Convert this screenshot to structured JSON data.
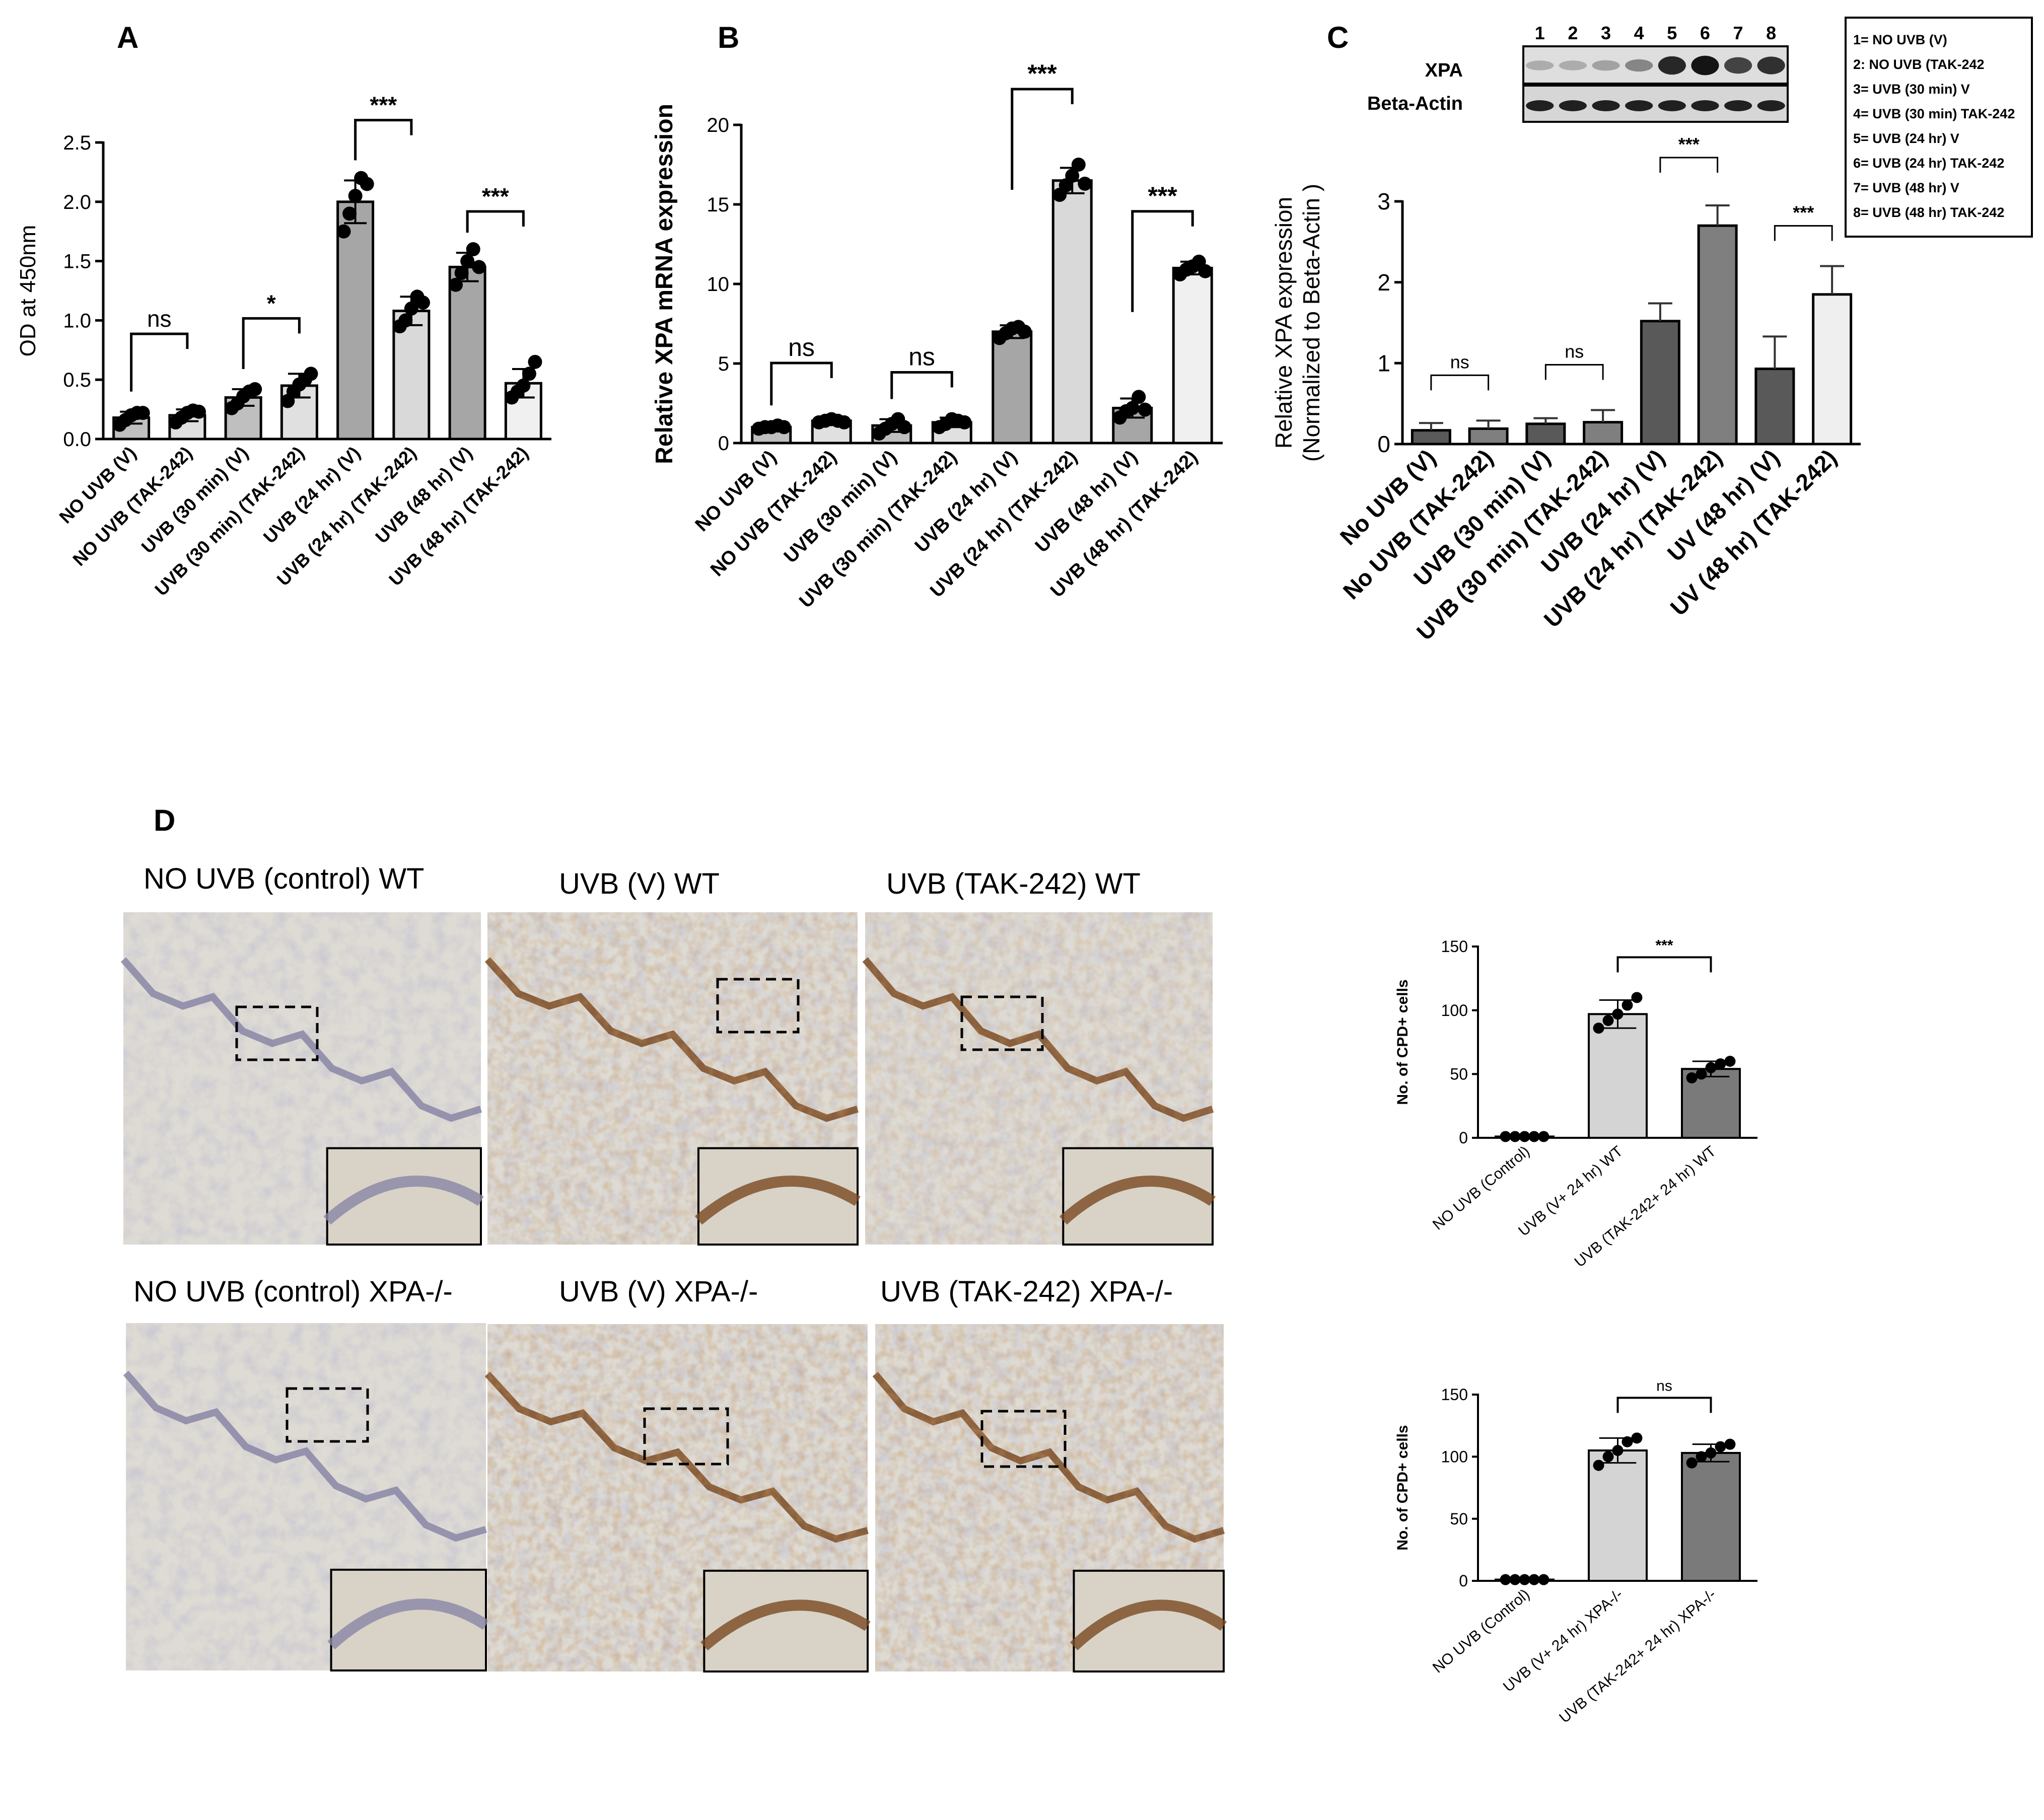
{
  "panels": {
    "A": "A",
    "B": "B",
    "C": "C",
    "D": "D"
  },
  "chart_data": [
    {
      "id": "A",
      "type": "bar",
      "ylabel": "OD at 450nm",
      "ylim": [
        0,
        2.5
      ],
      "yticks": [
        "0.0",
        "0.5",
        "1.0",
        "1.5",
        "2.0",
        "2.5"
      ],
      "categories": [
        "NO UVB (V)",
        "NO UVB (TAK-242)",
        "UVB (30 min) (V)",
        "UVB  (30 min) (TAK-242)",
        "UVB  (24 hr) (V)",
        "UVB  (24 hr) (TAK-242)",
        "UVB  (48 hr) (V)",
        "UVB  (48 hr) (TAK-242)"
      ],
      "values": [
        0.18,
        0.2,
        0.35,
        0.45,
        2.0,
        1.08,
        1.45,
        0.47
      ],
      "errors": [
        0.05,
        0.05,
        0.07,
        0.1,
        0.18,
        0.12,
        0.12,
        0.12
      ],
      "points": [
        [
          0.12,
          0.16,
          0.2,
          0.22,
          0.22
        ],
        [
          0.14,
          0.18,
          0.22,
          0.24,
          0.23
        ],
        [
          0.26,
          0.3,
          0.36,
          0.4,
          0.42
        ],
        [
          0.32,
          0.4,
          0.46,
          0.5,
          0.55
        ],
        [
          1.75,
          1.9,
          2.05,
          2.2,
          2.15
        ],
        [
          0.95,
          1.0,
          1.1,
          1.2,
          1.15
        ],
        [
          1.3,
          1.4,
          1.5,
          1.6,
          1.45
        ],
        [
          0.35,
          0.4,
          0.45,
          0.55,
          0.65
        ]
      ],
      "colors": [
        "#bfbfbf",
        "#e0e0e0",
        "#bfbfbf",
        "#e0e0e0",
        "#a6a6a6",
        "#d9d9d9",
        "#a6a6a6",
        "#f0f0f0"
      ],
      "significance": [
        {
          "pair": [
            0,
            1
          ],
          "label": "ns"
        },
        {
          "pair": [
            2,
            3
          ],
          "label": "*"
        },
        {
          "pair": [
            4,
            5
          ],
          "label": "***"
        },
        {
          "pair": [
            6,
            7
          ],
          "label": "***"
        }
      ]
    },
    {
      "id": "B",
      "type": "bar",
      "ylabel": "Relative XPA mRNA expression",
      "ylim": [
        0,
        20
      ],
      "yticks": [
        "0",
        "5",
        "10",
        "15",
        "20"
      ],
      "categories": [
        "NO UVB (V)",
        "NO UVB (TAK-242)",
        "UVB (30 min) (V)",
        "UVB  (30 min) (TAK-242)",
        "UVB  (24 hr) (V)",
        "UVB  (24 hr) (TAK-242)",
        "UVB  (48 hr) (V)",
        "UVB  (48 hr) (TAK-242)"
      ],
      "values": [
        1.0,
        1.4,
        1.1,
        1.3,
        7.0,
        16.5,
        2.2,
        11.0
      ],
      "errors": [
        0.1,
        0.15,
        0.4,
        0.3,
        0.4,
        0.8,
        0.6,
        0.4
      ],
      "points": [
        [
          0.9,
          1.0,
          1.0,
          1.1,
          1.0
        ],
        [
          1.3,
          1.4,
          1.5,
          1.4,
          1.3
        ],
        [
          0.6,
          0.9,
          1.2,
          1.5,
          1.0
        ],
        [
          1.0,
          1.2,
          1.5,
          1.4,
          1.3
        ],
        [
          6.6,
          6.9,
          7.2,
          7.3,
          7.0
        ],
        [
          15.6,
          16.2,
          16.8,
          17.5,
          16.3
        ],
        [
          1.6,
          2.0,
          2.2,
          2.9,
          2.1
        ],
        [
          10.6,
          10.9,
          11.1,
          11.4,
          10.8
        ]
      ],
      "colors": [
        "#bfbfbf",
        "#e0e0e0",
        "#bfbfbf",
        "#e0e0e0",
        "#a6a6a6",
        "#d9d9d9",
        "#a6a6a6",
        "#f0f0f0"
      ],
      "significance": [
        {
          "pair": [
            0,
            1
          ],
          "label": "ns"
        },
        {
          "pair": [
            2,
            3
          ],
          "label": "ns"
        },
        {
          "pair": [
            4,
            5
          ],
          "label": "***"
        },
        {
          "pair": [
            6,
            7
          ],
          "label": "***"
        }
      ]
    },
    {
      "id": "C",
      "type": "bar",
      "ylabel": "Relative XPA expression",
      "ylabel2": "(Normalized to Beta-Actin )",
      "ylim": [
        0,
        3
      ],
      "yticks": [
        "0",
        "1",
        "2",
        "3"
      ],
      "categories": [
        "No UVB (V)",
        "No UVB (TAK-242)",
        "UVB (30 min) (V)",
        "UVB (30 min) (TAK-242)",
        "UVB (24 hr) (V)",
        "UVB (24 hr) (TAK-242)",
        "UV (48 hr) (V)",
        "UV (48 hr) (TAK-242)"
      ],
      "values": [
        0.17,
        0.19,
        0.25,
        0.27,
        1.52,
        2.7,
        0.93,
        1.85
      ],
      "errors": [
        0.09,
        0.1,
        0.07,
        0.15,
        0.22,
        0.25,
        0.4,
        0.35
      ],
      "colors": [
        "#595959",
        "#7f7f7f",
        "#595959",
        "#7f7f7f",
        "#595959",
        "#7f7f7f",
        "#595959",
        "#efefef"
      ],
      "significance": [
        {
          "pair": [
            0,
            1
          ],
          "label": "ns"
        },
        {
          "pair": [
            2,
            3
          ],
          "label": "ns"
        },
        {
          "pair": [
            4,
            5
          ],
          "label": "***"
        },
        {
          "pair": [
            6,
            7
          ],
          "label": "***"
        }
      ]
    },
    {
      "id": "D-WT",
      "type": "bar",
      "ylabel": "No. of CPD+ cells",
      "ylim": [
        0,
        150
      ],
      "yticks": [
        "0",
        "50",
        "100",
        "150"
      ],
      "categories": [
        "NO UVB (Control)",
        "UVB (V+ 24 hr) WT",
        "UVB (TAK-242+ 24 hr) WT"
      ],
      "values": [
        1,
        97,
        54
      ],
      "errors": [
        0.5,
        11,
        6
      ],
      "points": [
        [
          1,
          1,
          1,
          1,
          1
        ],
        [
          86,
          92,
          97,
          104,
          110
        ],
        [
          47,
          50,
          55,
          58,
          60
        ]
      ],
      "colors": [
        "#ffffff",
        "#d4d4d4",
        "#7a7a7a"
      ],
      "significance": [
        {
          "pair": [
            1,
            2
          ],
          "label": "***"
        }
      ]
    },
    {
      "id": "D-XPA",
      "type": "bar",
      "ylabel": "No. of CPD+ cells",
      "ylim": [
        0,
        150
      ],
      "yticks": [
        "0",
        "50",
        "100",
        "150"
      ],
      "categories": [
        "NO UVB (Control)",
        "UVB (V+ 24 hr) XPA-/-",
        "UVB (TAK-242+ 24 hr) XPA-/-"
      ],
      "values": [
        1,
        105,
        103
      ],
      "errors": [
        0.5,
        10,
        7
      ],
      "points": [
        [
          1,
          1,
          1,
          1,
          1
        ],
        [
          93,
          100,
          105,
          112,
          115
        ],
        [
          95,
          100,
          103,
          108,
          110
        ]
      ],
      "colors": [
        "#ffffff",
        "#d4d4d4",
        "#7a7a7a"
      ],
      "significance": [
        {
          "pair": [
            1,
            2
          ],
          "label": "ns"
        }
      ]
    }
  ],
  "blot": {
    "lanes": [
      "1",
      "2",
      "3",
      "4",
      "5",
      "6",
      "7",
      "8"
    ],
    "rows": [
      "XPA",
      "Beta-Actin"
    ],
    "xpa_intensity": [
      0.15,
      0.15,
      0.2,
      0.35,
      0.85,
      0.95,
      0.7,
      0.8
    ],
    "legend": [
      "1= NO UVB (V)",
      "2: NO UVB (TAK-242",
      "3= UVB (30 min) V",
      "4= UVB (30 min) TAK-242",
      "5= UVB (24 hr) V",
      "6= UVB (24 hr) TAK-242",
      "7= UVB (48 hr) V",
      "8= UVB (48 hr) TAK-242"
    ]
  },
  "histology": {
    "row1": [
      "NO UVB (control) WT",
      "UVB (V) WT",
      "UVB (TAK-242)  WT"
    ],
    "row2": [
      "NO UVB (control) XPA-/-",
      "UVB (V) XPA-/-",
      "UVB (TAK-242)  XPA-/-"
    ],
    "stain_level": [
      0.05,
      0.8,
      0.6,
      0.05,
      0.9,
      0.9
    ]
  }
}
